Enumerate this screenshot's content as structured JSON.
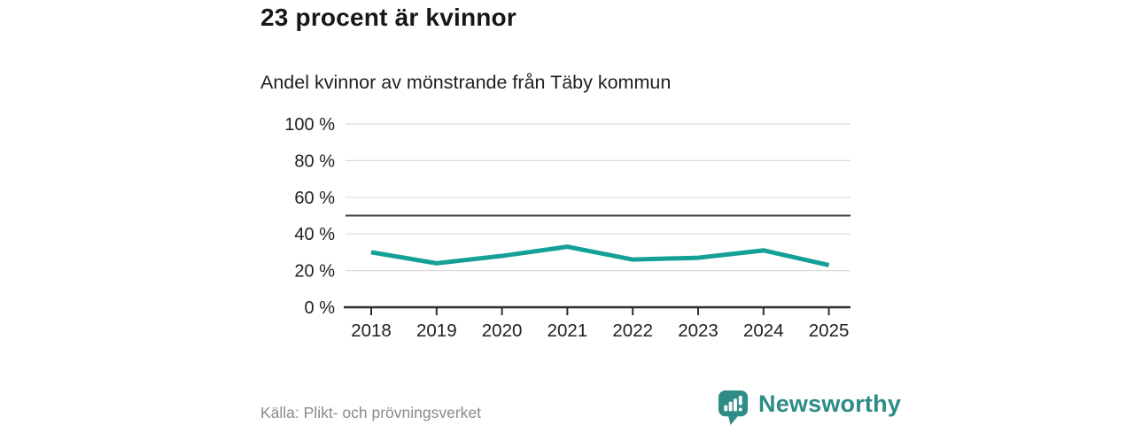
{
  "header": {
    "title": "23 procent är kvinnor",
    "subtitle": "Andel kvinnor av mönstrande från Täby kommun"
  },
  "footer": {
    "source": "Källa: Plikt- och prövningsverket",
    "brand": "Newsworthy"
  },
  "colors": {
    "line": "#14a096",
    "reference_line": "#3d3d3d",
    "gridline": "#dcdcdc",
    "axis": "#2e2e2e",
    "tick_text": "#222222",
    "title_text": "#171717",
    "subtitle_text": "#1f1f1f",
    "source_text": "#8a8a8a",
    "brand": "#2e8c86"
  },
  "chart_data": {
    "type": "line",
    "title": "23 procent är kvinnor",
    "subtitle": "Andel kvinnor av mönstrande från Täby kommun",
    "x": [
      2018,
      2019,
      2020,
      2021,
      2022,
      2023,
      2024,
      2025
    ],
    "series": [
      {
        "name": "Andel kvinnor av mönstrande",
        "values": [
          30,
          24,
          28,
          33,
          26,
          27,
          31,
          23
        ],
        "color": "#14a096"
      }
    ],
    "xlabel": "",
    "ylabel": "",
    "ylim": [
      0,
      100
    ],
    "yticks": [
      0,
      20,
      40,
      60,
      80,
      100
    ],
    "ytick_format": "{v} %",
    "reference_line": 50,
    "grid": true,
    "legend": "none",
    "source": "Källa: Plikt- och prövningsverket"
  }
}
